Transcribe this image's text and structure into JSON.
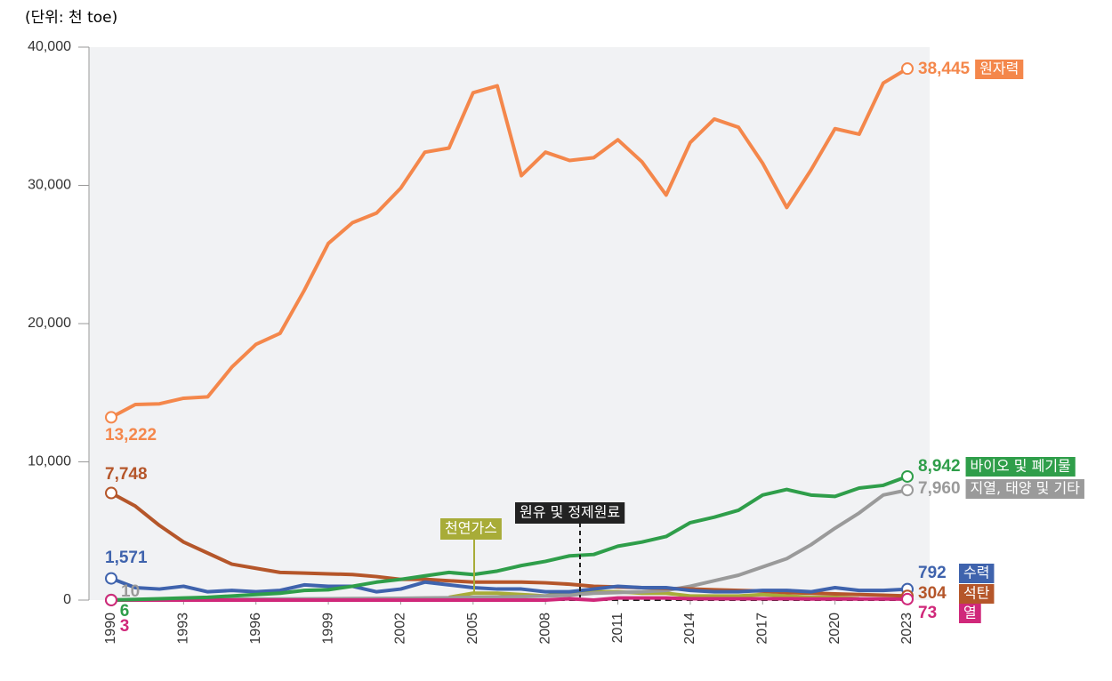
{
  "chart_data": {
    "type": "line",
    "unit_label": "(단위: 천 toe)",
    "x": [
      1990,
      1991,
      1992,
      1993,
      1994,
      1995,
      1996,
      1997,
      1998,
      1999,
      2000,
      2001,
      2002,
      2003,
      2004,
      2005,
      2006,
      2007,
      2008,
      2009,
      2010,
      2011,
      2012,
      2013,
      2014,
      2015,
      2016,
      2017,
      2018,
      2019,
      2020,
      2021,
      2022,
      2023
    ],
    "xlim": [
      1990,
      2023
    ],
    "xticks": [
      1990,
      1993,
      1996,
      1999,
      2002,
      2005,
      2008,
      2011,
      2014,
      2017,
      2020,
      2023
    ],
    "ylim": [
      0,
      40000
    ],
    "yticks": [
      0,
      {
        "value": 10000,
        "label": "10,000"
      },
      {
        "value": 20000,
        "label": "20,000"
      },
      {
        "value": 30000,
        "label": "30,000"
      },
      {
        "value": 40000,
        "label": "40,000"
      }
    ],
    "series": [
      {
        "name": "원자력",
        "color": "#f4874b",
        "values": [
          13222,
          14150,
          14200,
          14600,
          14700,
          16850,
          18500,
          19300,
          22400,
          25800,
          27300,
          28000,
          29800,
          32400,
          32700,
          36700,
          37200,
          30700,
          32400,
          31800,
          32000,
          33300,
          31700,
          29300,
          33100,
          34800,
          34200,
          31600,
          28400,
          31100,
          34100,
          33700,
          37400,
          38445
        ],
        "value_labels": [
          "13,222",
          null,
          null,
          null,
          null,
          null,
          null,
          null,
          null,
          null,
          null,
          null,
          null,
          null,
          null,
          null,
          null,
          null,
          null,
          null,
          null,
          null,
          null,
          null,
          null,
          null,
          null,
          null,
          null,
          null,
          null,
          null,
          null,
          "38,445"
        ]
      },
      {
        "name": "바이오 및 폐기물",
        "color": "#2f9e4a",
        "values": [
          6,
          50,
          100,
          150,
          200,
          300,
          400,
          500,
          700,
          750,
          1000,
          1300,
          1500,
          1750,
          2000,
          1850,
          2100,
          2500,
          2800,
          3200,
          3300,
          3900,
          4200,
          4600,
          5600,
          6000,
          6500,
          7600,
          8000,
          7600,
          7500,
          8100,
          8300,
          8942
        ],
        "value_labels": [
          "6",
          null,
          null,
          null,
          null,
          null,
          null,
          null,
          null,
          null,
          null,
          null,
          null,
          null,
          null,
          null,
          null,
          null,
          null,
          null,
          null,
          null,
          null,
          null,
          null,
          null,
          null,
          null,
          null,
          null,
          null,
          null,
          null,
          "8,942"
        ]
      },
      {
        "name": "지열, 태양 및 기타",
        "color": "#9a9a9a",
        "values": [
          10,
          20,
          30,
          40,
          50,
          60,
          70,
          80,
          90,
          100,
          110,
          120,
          130,
          150,
          170,
          200,
          220,
          250,
          300,
          350,
          500,
          550,
          600,
          700,
          1000,
          1400,
          1800,
          2400,
          3000,
          4000,
          5200,
          6300,
          7600,
          7960
        ],
        "value_labels": [
          "10",
          null,
          null,
          null,
          null,
          null,
          null,
          null,
          null,
          null,
          null,
          null,
          null,
          null,
          null,
          null,
          null,
          null,
          null,
          null,
          null,
          null,
          null,
          null,
          null,
          null,
          null,
          null,
          null,
          null,
          null,
          null,
          null,
          "7,960"
        ]
      },
      {
        "name": "수력",
        "color": "#3f63ad",
        "values": [
          1571,
          900,
          800,
          1000,
          600,
          700,
          600,
          700,
          1100,
          1000,
          1000,
          600,
          800,
          1300,
          1100,
          900,
          800,
          800,
          600,
          600,
          800,
          1000,
          900,
          900,
          700,
          600,
          600,
          700,
          700,
          600,
          900,
          700,
          700,
          792
        ],
        "value_labels": [
          "1,571",
          null,
          null,
          null,
          null,
          null,
          null,
          null,
          null,
          null,
          null,
          null,
          null,
          null,
          null,
          null,
          null,
          null,
          null,
          null,
          null,
          null,
          null,
          null,
          null,
          null,
          null,
          null,
          null,
          null,
          null,
          null,
          null,
          "792"
        ]
      },
      {
        "name": "석탄",
        "color": "#b5562a",
        "values": [
          7748,
          6800,
          5400,
          4200,
          3400,
          2600,
          2300,
          2000,
          1950,
          1900,
          1850,
          1700,
          1500,
          1500,
          1400,
          1300,
          1300,
          1300,
          1250,
          1150,
          1000,
          950,
          900,
          850,
          800,
          750,
          700,
          650,
          550,
          500,
          450,
          400,
          350,
          304
        ],
        "value_labels": [
          "7,748",
          null,
          null,
          null,
          null,
          null,
          null,
          null,
          null,
          null,
          null,
          null,
          null,
          null,
          null,
          null,
          null,
          null,
          null,
          null,
          null,
          null,
          null,
          null,
          null,
          null,
          null,
          null,
          null,
          null,
          null,
          null,
          null,
          "304"
        ]
      },
      {
        "name": "열",
        "color": "#d0287a",
        "values": [
          3,
          3,
          3,
          3,
          3,
          3,
          3,
          3,
          3,
          3,
          3,
          3,
          3,
          3,
          3,
          3,
          3,
          3,
          3,
          100,
          0,
          150,
          150,
          150,
          100,
          100,
          100,
          100,
          100,
          80,
          80,
          80,
          80,
          73
        ],
        "value_labels": [
          "3",
          null,
          null,
          null,
          null,
          null,
          null,
          null,
          null,
          null,
          null,
          null,
          null,
          null,
          null,
          null,
          null,
          null,
          null,
          null,
          null,
          null,
          null,
          null,
          null,
          null,
          null,
          null,
          null,
          null,
          null,
          null,
          null,
          "73"
        ]
      },
      {
        "name": "천연가스",
        "color": "#a8ac38",
        "values": [
          null,
          null,
          null,
          null,
          null,
          null,
          null,
          null,
          null,
          null,
          null,
          null,
          null,
          null,
          200,
          500,
          500,
          400,
          300,
          600,
          600,
          600,
          500,
          500,
          300,
          300,
          300,
          400,
          300,
          200,
          200,
          100,
          null,
          null
        ]
      },
      {
        "name": "원유 및 정제원료",
        "color": "#222222",
        "dashed": true,
        "values": [
          null,
          null,
          null,
          null,
          null,
          null,
          null,
          null,
          null,
          null,
          null,
          null,
          null,
          null,
          null,
          100,
          0,
          0,
          0,
          0,
          0,
          0,
          0,
          0,
          0,
          0,
          0,
          0,
          0,
          0,
          0,
          0,
          0,
          0
        ]
      }
    ]
  }
}
